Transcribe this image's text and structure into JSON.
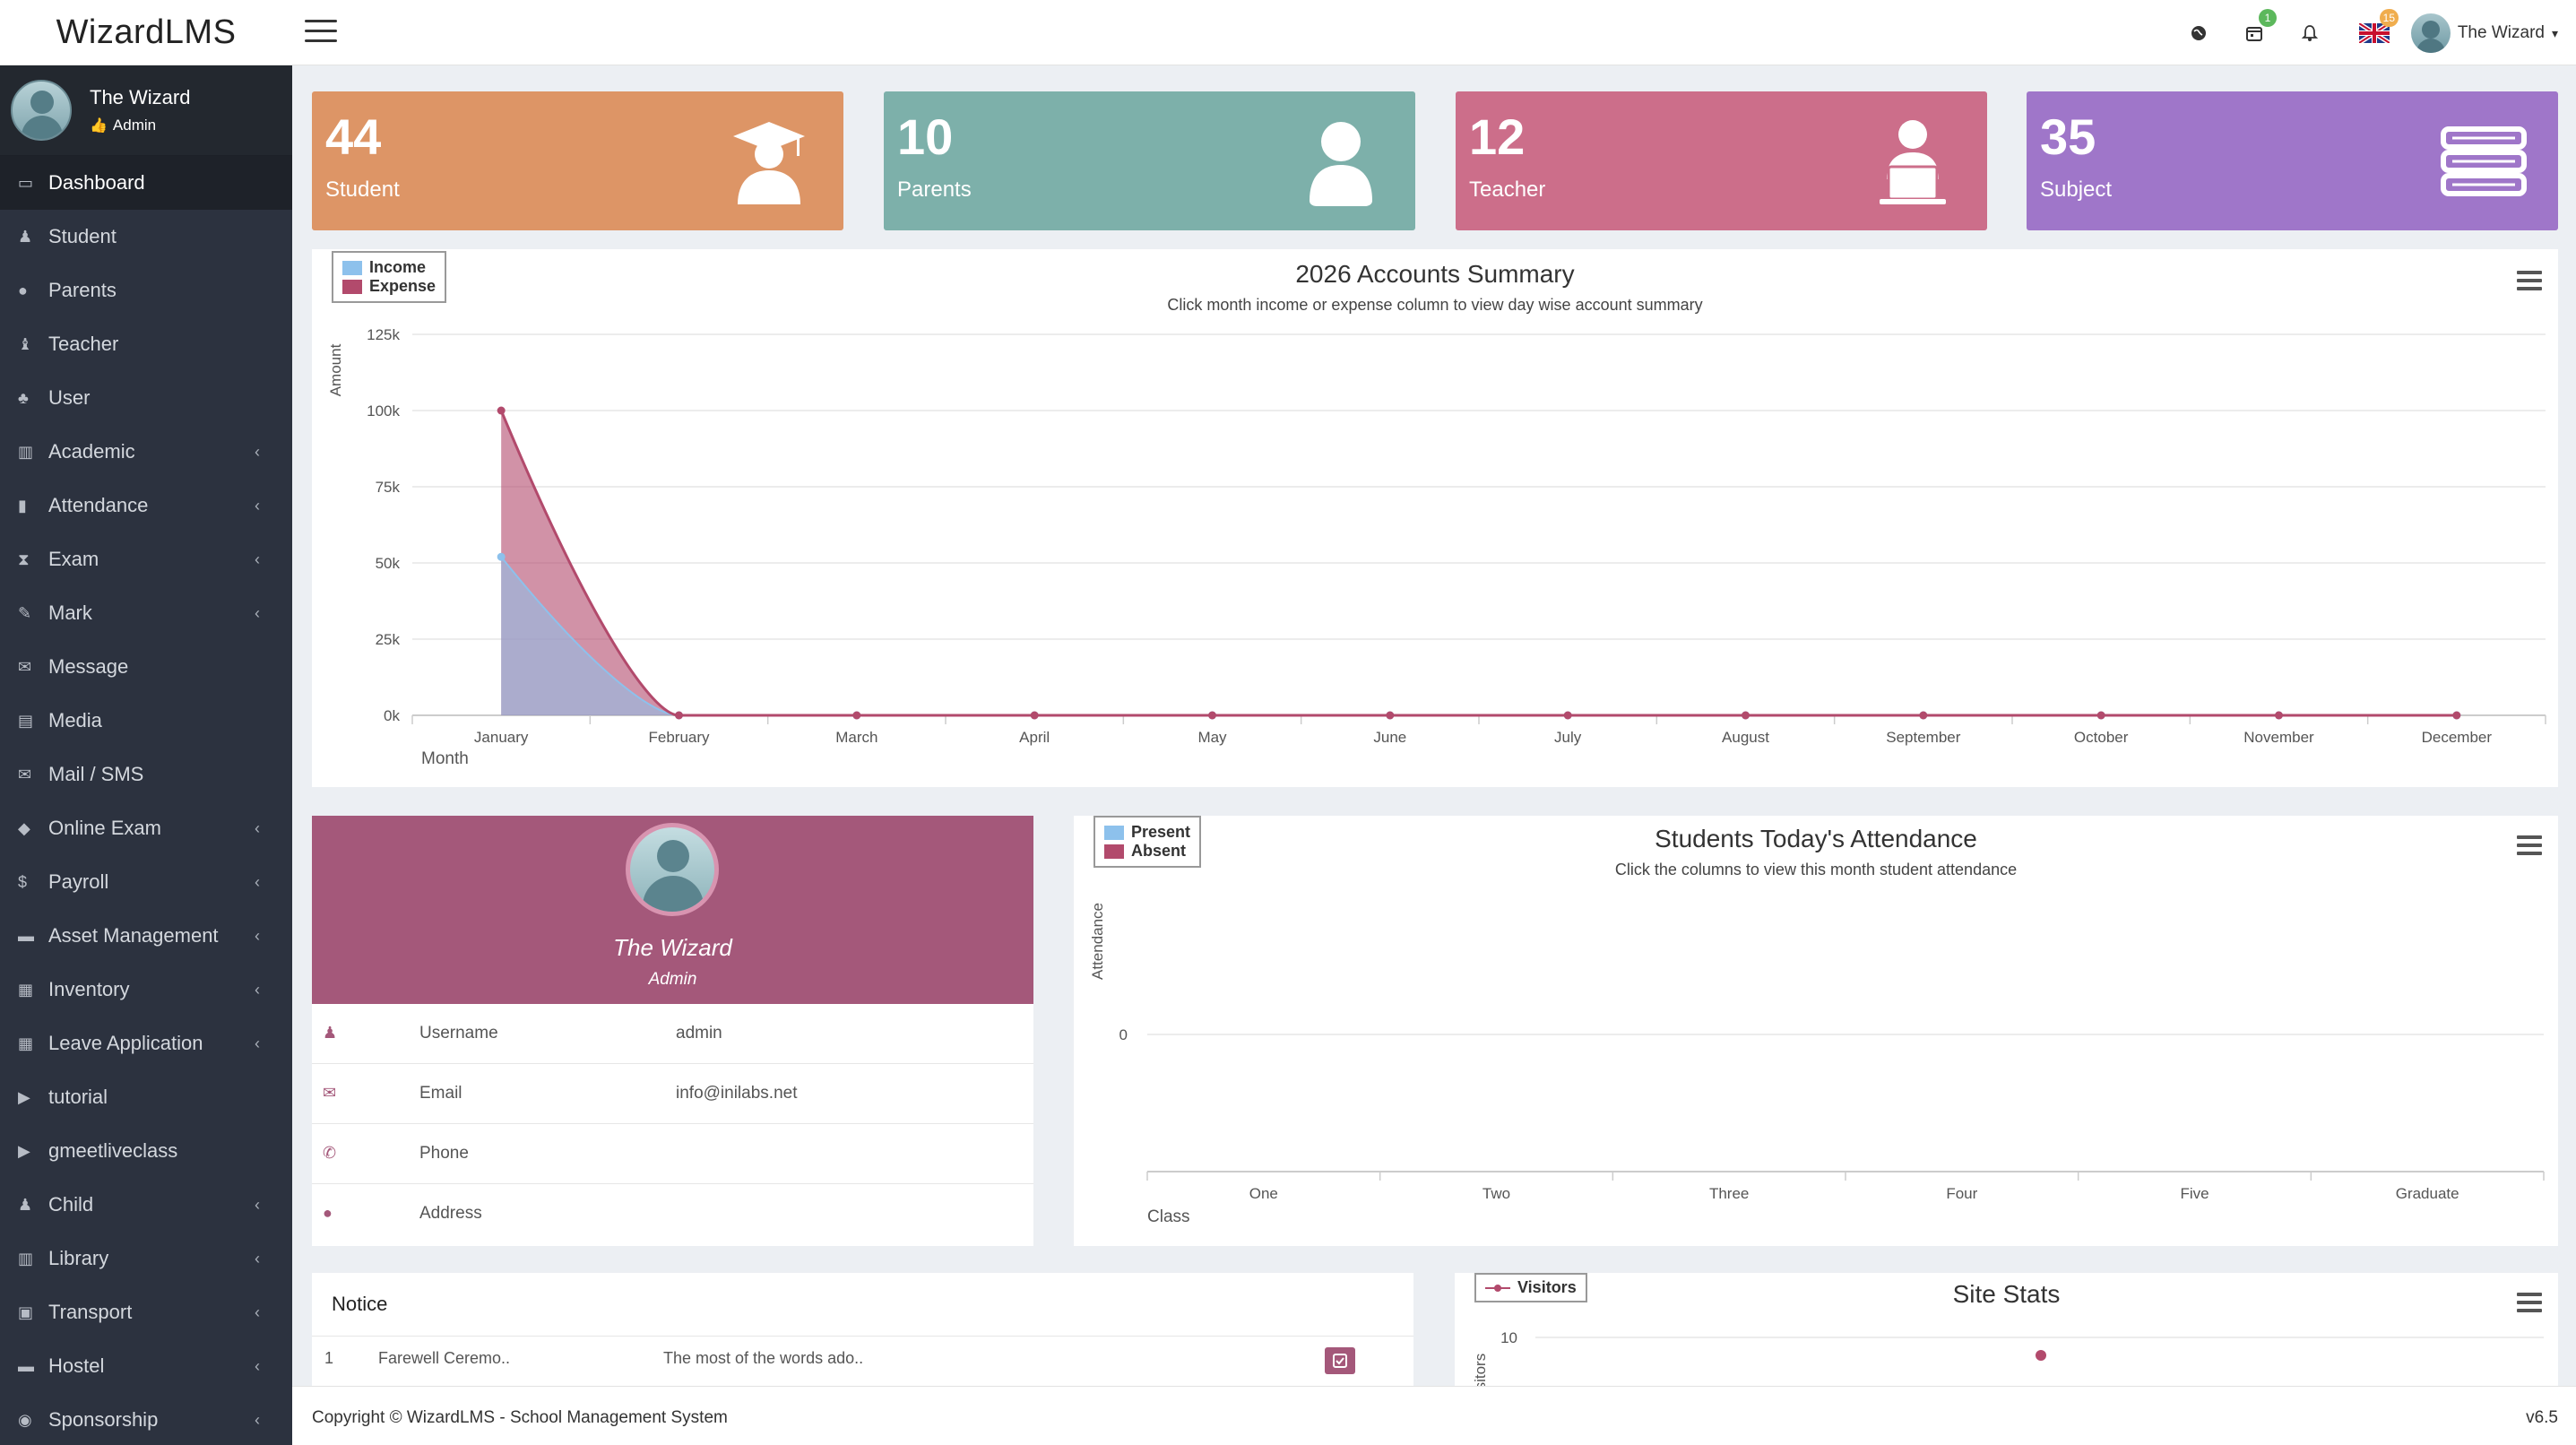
{
  "app": {
    "brand": "WizardLMS"
  },
  "header": {
    "notifications": {
      "calendar_badge": "1",
      "language_badge": "15"
    },
    "user_name": "The Wizard"
  },
  "sidebar": {
    "user": {
      "name": "The Wizard",
      "role": "Admin"
    },
    "items": [
      {
        "label": "Dashboard",
        "icon": "laptop-icon",
        "chevron": false,
        "active": true
      },
      {
        "label": "Student",
        "icon": "student-icon",
        "chevron": false
      },
      {
        "label": "Parents",
        "icon": "user-icon",
        "chevron": false
      },
      {
        "label": "Teacher",
        "icon": "teacher-icon",
        "chevron": false
      },
      {
        "label": "User",
        "icon": "users-icon",
        "chevron": false
      },
      {
        "label": "Academic",
        "icon": "academic-icon",
        "chevron": true
      },
      {
        "label": "Attendance",
        "icon": "clipboard-icon",
        "chevron": true
      },
      {
        "label": "Exam",
        "icon": "hourglass-icon",
        "chevron": true
      },
      {
        "label": "Mark",
        "icon": "edit-icon",
        "chevron": true
      },
      {
        "label": "Message",
        "icon": "envelope-icon",
        "chevron": false
      },
      {
        "label": "Media",
        "icon": "film-icon",
        "chevron": false
      },
      {
        "label": "Mail / SMS",
        "icon": "mail-open-icon",
        "chevron": false
      },
      {
        "label": "Online Exam",
        "icon": "graduation-icon",
        "chevron": true
      },
      {
        "label": "Payroll",
        "icon": "dollar-icon",
        "chevron": true
      },
      {
        "label": "Asset Management",
        "icon": "archive-icon",
        "chevron": true
      },
      {
        "label": "Inventory",
        "icon": "inventory-icon",
        "chevron": true
      },
      {
        "label": "Leave Application",
        "icon": "calendar-grid-icon",
        "chevron": true
      },
      {
        "label": "tutorial",
        "icon": "video-icon",
        "chevron": false
      },
      {
        "label": "gmeetliveclass",
        "icon": "video-icon",
        "chevron": false
      },
      {
        "label": "Child",
        "icon": "child-icon",
        "chevron": true
      },
      {
        "label": "Library",
        "icon": "library-icon",
        "chevron": true
      },
      {
        "label": "Transport",
        "icon": "bus-icon",
        "chevron": true
      },
      {
        "label": "Hostel",
        "icon": "bed-icon",
        "chevron": true
      },
      {
        "label": "Sponsorship",
        "icon": "globe-icon",
        "chevron": true
      }
    ]
  },
  "stats": [
    {
      "value": "44",
      "label": "Student",
      "color": "#dd9566",
      "icon": "graduate-icon"
    },
    {
      "value": "10",
      "label": "Parents",
      "color": "#7db0aa",
      "icon": "person-icon"
    },
    {
      "value": "12",
      "label": "Teacher",
      "color": "#cc6e8a",
      "icon": "teacher-laptop-icon"
    },
    {
      "value": "35",
      "label": "Subject",
      "color": "#9f76c9",
      "icon": "books-icon"
    }
  ],
  "colors": {
    "income": "#8dc1ec",
    "expense": "#b24a6c",
    "accent": "#a4587a",
    "sidebar": "#2c323f"
  },
  "chart_data": [
    {
      "type": "area",
      "title": "2026 Accounts Summary",
      "subtitle": "Click month income or expense column to view day wise account summary",
      "xlabel": "Month",
      "ylabel": "Amount",
      "categories": [
        "January",
        "February",
        "March",
        "April",
        "May",
        "June",
        "July",
        "August",
        "September",
        "October",
        "November",
        "December"
      ],
      "y_ticks": [
        "0k",
        "25k",
        "50k",
        "75k",
        "100k",
        "125k"
      ],
      "ylim": [
        0,
        125000
      ],
      "legend": "top-left",
      "series": [
        {
          "name": "Income",
          "values": [
            52000,
            0,
            0,
            0,
            0,
            0,
            0,
            0,
            0,
            0,
            0,
            0
          ]
        },
        {
          "name": "Expense",
          "values": [
            100000,
            0,
            0,
            0,
            0,
            0,
            0,
            0,
            0,
            0,
            0,
            0
          ]
        }
      ]
    },
    {
      "type": "bar",
      "title": "Students Today's Attendance",
      "subtitle": "Click the columns to view this month student attendance",
      "xlabel": "Class",
      "ylabel": "Attendance",
      "categories": [
        "One",
        "Two",
        "Three",
        "Four",
        "Five",
        "Graduate"
      ],
      "y_ticks": [
        "0"
      ],
      "legend": "top-left",
      "series": [
        {
          "name": "Present",
          "values": [
            0,
            0,
            0,
            0,
            0,
            0
          ]
        },
        {
          "name": "Absent",
          "values": [
            0,
            0,
            0,
            0,
            0,
            0
          ]
        }
      ]
    },
    {
      "type": "line",
      "title": "Site Stats",
      "ylabel": "isitors",
      "y_ticks": [
        "10"
      ],
      "legend": "top-left",
      "series": [
        {
          "name": "Visitors",
          "values": [
            10
          ]
        }
      ]
    }
  ],
  "profile": {
    "name": "The Wizard",
    "role": "Admin",
    "rows": [
      {
        "key": "Username",
        "value": "admin",
        "icon": "user-icon"
      },
      {
        "key": "Email",
        "value": "info@inilabs.net",
        "icon": "envelope-icon"
      },
      {
        "key": "Phone",
        "value": "",
        "icon": "phone-icon"
      },
      {
        "key": "Address",
        "value": "",
        "icon": "globe-icon"
      }
    ]
  },
  "notice": {
    "title": "Notice",
    "rows": [
      {
        "index": "1",
        "title": "Farewell Ceremo..",
        "body": "The most of the words ado.."
      }
    ]
  },
  "footer": {
    "copyright": "Copyright © WizardLMS - School Management System",
    "version": "v6.5"
  }
}
